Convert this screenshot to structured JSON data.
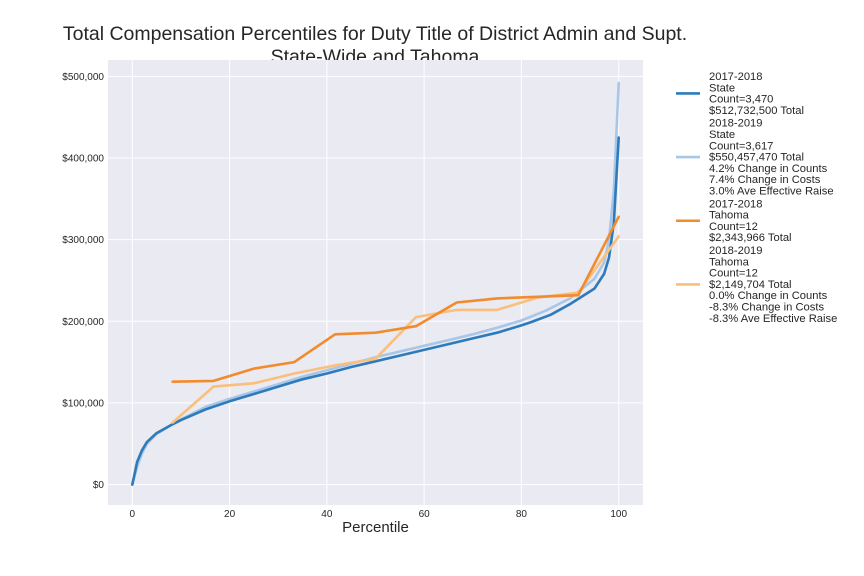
{
  "chart_data": {
    "type": "line",
    "title": [
      "Total Compensation Percentiles for Duty Title of District Admin and Supt.",
      "State-Wide and Tahoma"
    ],
    "xlabel": "Percentile",
    "ylabel": "",
    "xlim": [
      -5,
      105
    ],
    "ylim": [
      -25000,
      520000
    ],
    "x_ticks": [
      0,
      20,
      40,
      60,
      80,
      100
    ],
    "x_tick_labels": [
      "0",
      "20",
      "40",
      "60",
      "80",
      "100"
    ],
    "y_ticks": [
      0,
      100000,
      200000,
      300000,
      400000,
      500000
    ],
    "y_tick_labels": [
      "$0",
      "$100,000",
      "$200,000",
      "$300,000",
      "$400,000",
      "$500,000"
    ],
    "grid": true,
    "legend_position": "outside-right",
    "series": [
      {
        "legend": [
          "2017-2018",
          "State",
          "Count=3,470",
          "$512,732,500 Total"
        ],
        "color": "#2d7bba",
        "x": [
          0,
          1,
          2,
          3,
          5,
          8,
          10,
          15,
          20,
          25,
          30,
          35,
          40,
          45,
          50,
          55,
          60,
          65,
          70,
          75,
          80,
          82,
          86,
          90,
          95,
          97,
          98,
          99,
          100
        ],
        "y": [
          0,
          28000,
          42000,
          52000,
          63000,
          73000,
          79000,
          92000,
          102000,
          111000,
          120000,
          129000,
          136000,
          144000,
          151000,
          158000,
          165000,
          172000,
          179000,
          186000,
          195000,
          199000,
          208000,
          221000,
          240000,
          258000,
          278000,
          320000,
          425000
        ]
      },
      {
        "legend": [
          "2018-2019",
          "State",
          "Count=3,617",
          "$550,457,470 Total",
          "4.2% Change in Counts",
          "7.4% Change in Costs",
          "3.0% Ave Effective Raise"
        ],
        "color": "#a8c7e8",
        "x": [
          0,
          1,
          2,
          3,
          5,
          8,
          10,
          15,
          20,
          25,
          30,
          35,
          40,
          45,
          50,
          55,
          60,
          65,
          70,
          75,
          80,
          85,
          90,
          95,
          97,
          98,
          99,
          100
        ],
        "y": [
          0,
          22000,
          38000,
          50000,
          62000,
          73000,
          80000,
          95000,
          105000,
          114000,
          123000,
          132000,
          140000,
          148000,
          156000,
          163000,
          170000,
          177000,
          184000,
          192000,
          201000,
          213000,
          228000,
          252000,
          272000,
          300000,
          360000,
          492000
        ]
      },
      {
        "legend": [
          "2017-2018",
          "Tahoma",
          "Count=12",
          "$2,343,966 Total"
        ],
        "color": "#f28a2e",
        "x": [
          8.3,
          16.7,
          25,
          33.3,
          41.7,
          50,
          58.3,
          66.7,
          75,
          83.3,
          91.7,
          100
        ],
        "y": [
          126000,
          127000,
          142000,
          150000,
          184000,
          186000,
          194000,
          223000,
          228000,
          230000,
          232000,
          328000
        ]
      },
      {
        "legend": [
          "2018-2019",
          "Tahoma",
          "Count=12",
          "$2,149,704 Total",
          "0.0% Change in Counts",
          "-8.3% Change in Costs",
          "-8.3% Ave Effective Raise"
        ],
        "color": "#fbbf7d",
        "x": [
          8.3,
          16.7,
          25,
          33.3,
          41.7,
          50,
          58.3,
          66.7,
          75,
          83.3,
          91.7,
          100
        ],
        "y": [
          76000,
          120000,
          124000,
          136000,
          146000,
          154000,
          205000,
          214000,
          214000,
          229000,
          235000,
          304000
        ]
      }
    ]
  }
}
